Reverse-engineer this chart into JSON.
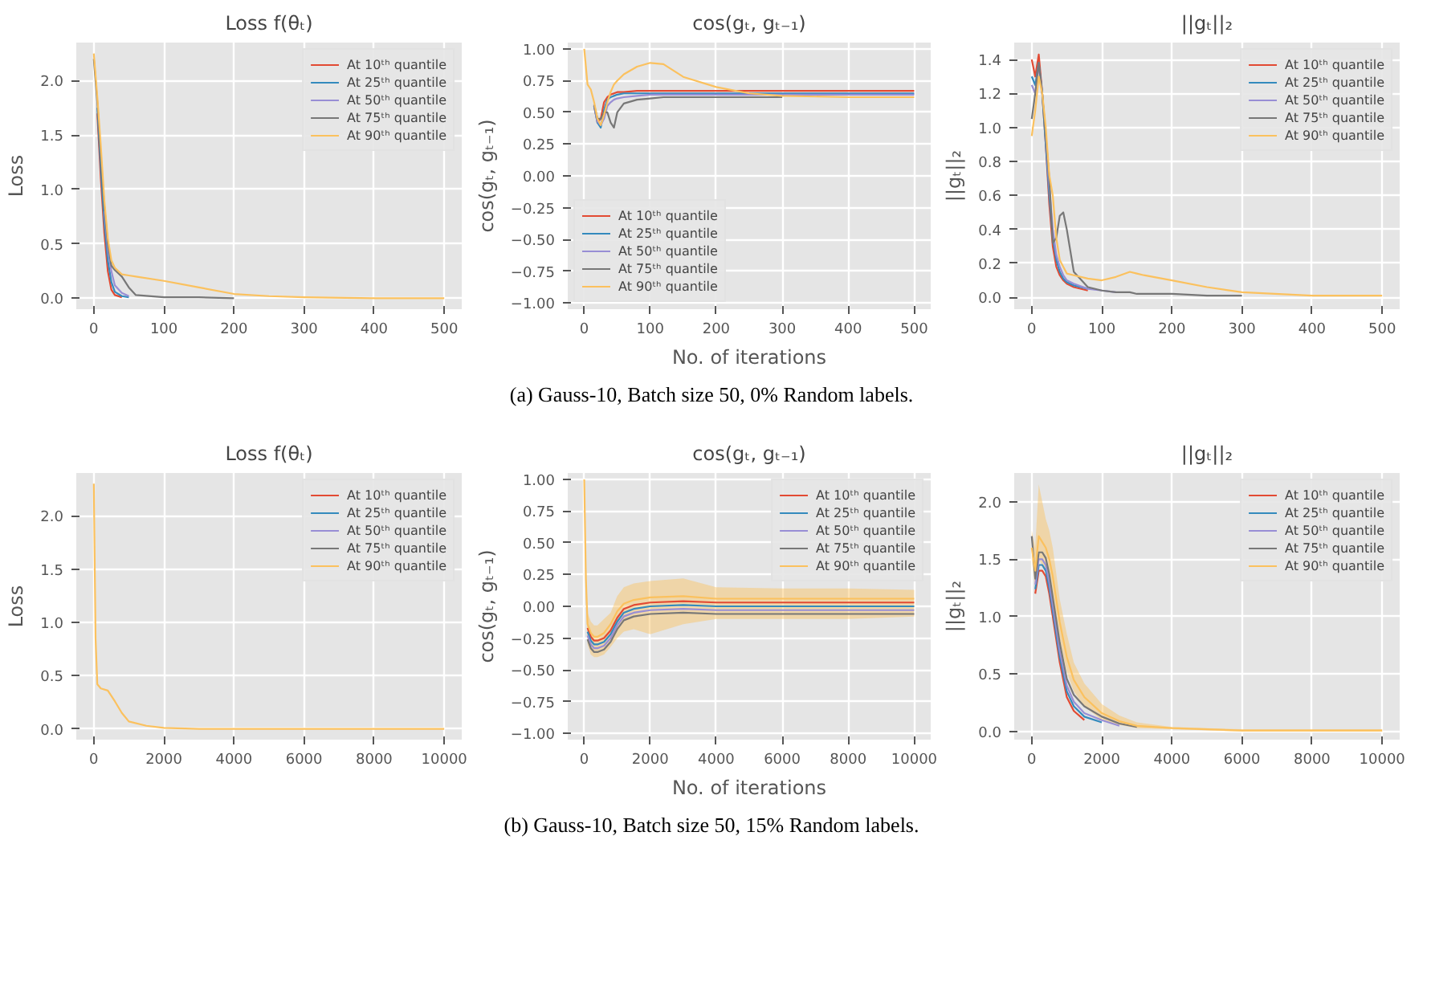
{
  "chart_data": [
    {
      "type": "line",
      "title": "Loss f(θₜ)",
      "ylabel": "Loss",
      "legend": "top right",
      "grid": true,
      "x": [
        0,
        5,
        10,
        15,
        20,
        25,
        30,
        40,
        50,
        60,
        100,
        150,
        200,
        250,
        300,
        400,
        500
      ],
      "xlim": [
        -25,
        525
      ],
      "xticks": [
        0,
        100,
        200,
        300,
        400,
        500
      ],
      "ylim": [
        -0.1,
        2.35
      ],
      "yticks": [
        {
          "value": 0,
          "label": "0.0"
        },
        {
          "value": 0.5,
          "label": "0.5"
        },
        {
          "value": 1,
          "label": "1.0"
        },
        {
          "value": 1.5,
          "label": "1.5"
        },
        {
          "value": 2,
          "label": "2.0"
        }
      ],
      "series": [
        {
          "name": "At 10ᵗʰ quantile",
          "color": "#e24a33",
          "values": [
            null,
            1.7,
            1.1,
            0.6,
            0.25,
            0.08,
            0.03,
            0.01,
            null,
            null,
            null,
            null,
            null,
            null,
            null,
            null,
            null
          ]
        },
        {
          "name": "At 25ᵗʰ quantile",
          "color": "#348abd",
          "values": [
            null,
            1.75,
            1.2,
            0.7,
            0.35,
            0.15,
            0.06,
            0.02,
            0.01,
            null,
            null,
            null,
            null,
            null,
            null,
            null,
            null
          ]
        },
        {
          "name": "At 50ᵗʰ quantile",
          "color": "#988ed5",
          "values": [
            null,
            null,
            null,
            0.8,
            0.45,
            0.25,
            0.12,
            0.05,
            0.02,
            null,
            null,
            null,
            null,
            null,
            null,
            null,
            null
          ]
        },
        {
          "name": "At 75ᵗʰ quantile",
          "color": "#777777",
          "values": [
            2.2,
            1.8,
            1.3,
            0.85,
            0.5,
            0.3,
            0.26,
            0.2,
            0.1,
            0.03,
            0.01,
            0.01,
            0.0,
            null,
            null,
            null,
            null
          ]
        },
        {
          "name": "At 90ᵗʰ quantile",
          "color": "#fbc15e",
          "values": [
            2.25,
            1.85,
            1.4,
            0.9,
            0.55,
            0.35,
            0.28,
            0.22,
            0.21,
            0.2,
            0.16,
            0.1,
            0.04,
            0.02,
            0.01,
            0.0,
            0.0
          ]
        }
      ]
    },
    {
      "type": "line",
      "title": "cos(gₜ, gₜ₋₁)",
      "ylabel": "cos(gₜ, gₜ₋₁)",
      "xlabel": "No. of iterations",
      "legend": "bottom left",
      "grid": true,
      "annotations": [
        "(a)  Gauss-10, Batch size 50, 0% Random labels."
      ],
      "x": [
        0,
        5,
        10,
        15,
        20,
        25,
        30,
        35,
        40,
        45,
        50,
        60,
        80,
        100,
        120,
        150,
        200,
        250,
        300,
        400,
        500
      ],
      "xlim": [
        -25,
        525
      ],
      "xticks": [
        0,
        100,
        200,
        300,
        400,
        500
      ],
      "ylim": [
        -1.05,
        1.05
      ],
      "yticks": [
        {
          "value": -1,
          "label": "−1.00"
        },
        {
          "value": -0.75,
          "label": "−0.75"
        },
        {
          "value": -0.5,
          "label": "−0.50"
        },
        {
          "value": -0.25,
          "label": "−0.25"
        },
        {
          "value": 0,
          "label": "0.00"
        },
        {
          "value": 0.25,
          "label": "0.25"
        },
        {
          "value": 0.5,
          "label": "0.50"
        },
        {
          "value": 0.75,
          "label": "0.75"
        },
        {
          "value": 1,
          "label": "1.00"
        }
      ],
      "series": [
        {
          "name": "At 10ᵗʰ quantile",
          "color": "#e24a33",
          "values": [
            null,
            null,
            null,
            0.55,
            0.42,
            0.45,
            0.58,
            0.62,
            0.64,
            0.65,
            0.66,
            0.66,
            0.67,
            0.67,
            0.67,
            0.67,
            0.67,
            0.67,
            0.67,
            0.67,
            0.67
          ]
        },
        {
          "name": "At 25ᵗʰ quantile",
          "color": "#348abd",
          "values": [
            null,
            null,
            null,
            0.55,
            0.42,
            0.38,
            0.52,
            0.6,
            0.62,
            0.63,
            0.64,
            0.65,
            0.65,
            0.65,
            0.65,
            0.65,
            0.65,
            0.65,
            0.65,
            0.65,
            0.65
          ]
        },
        {
          "name": "At 50ᵗʰ quantile",
          "color": "#988ed5",
          "values": [
            null,
            null,
            null,
            0.56,
            0.43,
            0.4,
            0.45,
            0.55,
            0.58,
            0.6,
            0.61,
            0.62,
            0.63,
            0.64,
            0.64,
            0.64,
            0.64,
            0.64,
            0.64,
            0.64,
            0.64
          ]
        },
        {
          "name": "At 75ᵗʰ quantile",
          "color": "#777777",
          "values": [
            null,
            null,
            null,
            0.56,
            0.45,
            0.45,
            0.5,
            0.5,
            0.42,
            0.38,
            0.5,
            0.57,
            0.6,
            0.61,
            0.62,
            0.62,
            0.62,
            0.62,
            0.62,
            null,
            null
          ]
        },
        {
          "name": "At 90ᵗʰ quantile",
          "color": "#fbc15e",
          "values": [
            1.0,
            0.72,
            0.68,
            0.58,
            0.45,
            0.4,
            0.48,
            0.58,
            0.66,
            0.72,
            0.75,
            0.8,
            0.86,
            0.89,
            0.88,
            0.78,
            0.7,
            0.65,
            0.63,
            0.62,
            0.62
          ]
        }
      ]
    },
    {
      "type": "line",
      "title": "||gₜ||₂",
      "ylabel": "||gₜ||₂",
      "legend": "top right",
      "grid": true,
      "x": [
        0,
        5,
        10,
        15,
        20,
        25,
        30,
        35,
        40,
        45,
        50,
        60,
        80,
        100,
        120,
        140,
        150,
        160,
        200,
        250,
        300,
        400,
        500
      ],
      "xlim": [
        -25,
        525
      ],
      "xticks": [
        0,
        100,
        200,
        300,
        400,
        500
      ],
      "ylim": [
        -0.07,
        1.5
      ],
      "yticks": [
        {
          "value": 0,
          "label": "0.0"
        },
        {
          "value": 0.2,
          "label": "0.2"
        },
        {
          "value": 0.4,
          "label": "0.4"
        },
        {
          "value": 0.6,
          "label": "0.6"
        },
        {
          "value": 0.8,
          "label": "0.8"
        },
        {
          "value": 1,
          "label": "1.0"
        },
        {
          "value": 1.2,
          "label": "1.2"
        },
        {
          "value": 1.4,
          "label": "1.4"
        }
      ],
      "series": [
        {
          "name": "At 10ᵗʰ quantile",
          "color": "#e24a33",
          "values": [
            1.4,
            1.3,
            1.43,
            1.2,
            0.9,
            0.55,
            0.3,
            0.18,
            0.13,
            0.1,
            0.08,
            0.06,
            0.04,
            null,
            null,
            null,
            null,
            null,
            null,
            null,
            null,
            null,
            null
          ]
        },
        {
          "name": "At 25ᵗʰ quantile",
          "color": "#348abd",
          "values": [
            1.3,
            1.25,
            1.38,
            1.2,
            0.9,
            0.6,
            0.35,
            0.22,
            0.15,
            0.11,
            0.09,
            0.07,
            0.05,
            null,
            null,
            null,
            null,
            null,
            null,
            null,
            null,
            null,
            null
          ]
        },
        {
          "name": "At 50ᵗʰ quantile",
          "color": "#988ed5",
          "values": [
            1.25,
            1.2,
            1.35,
            null,
            0.95,
            0.65,
            0.4,
            0.25,
            0.18,
            0.13,
            0.1,
            0.08,
            0.05,
            0.04,
            0.03,
            null,
            null,
            null,
            null,
            null,
            null,
            null,
            null
          ]
        },
        {
          "name": "At 75ᵗʰ quantile",
          "color": "#777777",
          "values": [
            1.05,
            1.2,
            1.38,
            1.2,
            0.95,
            0.7,
            0.32,
            0.35,
            0.48,
            0.5,
            0.4,
            0.15,
            0.06,
            0.04,
            0.03,
            0.03,
            0.02,
            0.02,
            0.02,
            0.01,
            0.01,
            null,
            null
          ]
        },
        {
          "name": "At 90ᵗʰ quantile",
          "color": "#fbc15e",
          "values": [
            0.95,
            1.1,
            1.3,
            1.2,
            1.0,
            0.72,
            0.6,
            0.35,
            0.22,
            0.18,
            0.14,
            0.13,
            0.11,
            0.1,
            0.12,
            0.15,
            0.14,
            0.13,
            0.1,
            0.06,
            0.03,
            0.01,
            0.01
          ]
        }
      ]
    },
    {
      "type": "line",
      "title": "Loss f(θₜ)",
      "ylabel": "Loss",
      "legend": "top right",
      "grid": true,
      "x": [
        0,
        50,
        100,
        200,
        400,
        600,
        800,
        1000,
        1500,
        2000,
        3000,
        5000,
        10000
      ],
      "xlim": [
        -500,
        10500
      ],
      "xticks": [
        0,
        2000,
        4000,
        6000,
        8000,
        10000
      ],
      "ylim": [
        -0.1,
        2.4
      ],
      "yticks": [
        {
          "value": 0,
          "label": "0.0"
        },
        {
          "value": 0.5,
          "label": "0.5"
        },
        {
          "value": 1,
          "label": "1.0"
        },
        {
          "value": 1.5,
          "label": "1.5"
        },
        {
          "value": 2,
          "label": "2.0"
        }
      ],
      "series": [
        {
          "name": "At 10ᵗʰ quantile",
          "color": "#e24a33",
          "values": [
            null,
            null,
            null,
            null,
            null,
            null,
            null,
            null,
            null,
            null,
            null,
            null,
            null
          ]
        },
        {
          "name": "At 25ᵗʰ quantile",
          "color": "#348abd",
          "values": [
            null,
            null,
            null,
            null,
            null,
            null,
            null,
            null,
            null,
            null,
            null,
            null,
            null
          ]
        },
        {
          "name": "At 50ᵗʰ quantile",
          "color": "#988ed5",
          "values": [
            null,
            null,
            null,
            null,
            null,
            null,
            null,
            null,
            null,
            null,
            null,
            null,
            null
          ]
        },
        {
          "name": "At 75ᵗʰ quantile",
          "color": "#777777",
          "values": [
            null,
            null,
            null,
            null,
            null,
            null,
            null,
            null,
            null,
            null,
            null,
            null,
            null
          ]
        },
        {
          "name": "At 90ᵗʰ quantile",
          "color": "#fbc15e",
          "values": [
            2.3,
            0.85,
            0.42,
            0.38,
            0.36,
            0.26,
            0.15,
            0.07,
            0.03,
            0.01,
            0.0,
            0.0,
            0.0
          ]
        }
      ]
    },
    {
      "type": "line",
      "title": "cos(gₜ, gₜ₋₁)",
      "ylabel": "cos(gₜ, gₜ₋₁)",
      "xlabel": "No. of iterations",
      "legend": "top right",
      "grid": true,
      "annotations": [
        "(b)  Gauss-10, Batch size 50, 15% Random labels."
      ],
      "x": [
        0,
        50,
        100,
        200,
        300,
        400,
        600,
        800,
        1000,
        1200,
        1500,
        2000,
        3000,
        4000,
        6000,
        8000,
        10000
      ],
      "xlim": [
        -500,
        10500
      ],
      "xticks": [
        0,
        2000,
        4000,
        6000,
        8000,
        10000
      ],
      "ylim": [
        -1.05,
        1.05
      ],
      "yticks": [
        {
          "value": -1,
          "label": "−1.00"
        },
        {
          "value": -0.75,
          "label": "−0.75"
        },
        {
          "value": -0.5,
          "label": "−0.50"
        },
        {
          "value": -0.25,
          "label": "−0.25"
        },
        {
          "value": 0,
          "label": "0.00"
        },
        {
          "value": 0.25,
          "label": "0.25"
        },
        {
          "value": 0.5,
          "label": "0.50"
        },
        {
          "value": 0.75,
          "label": "0.75"
        },
        {
          "value": 1,
          "label": "1.00"
        }
      ],
      "series": [
        {
          "name": "At 10ᵗʰ quantile",
          "color": "#e24a33",
          "values": [
            null,
            null,
            -0.17,
            -0.24,
            -0.27,
            -0.27,
            -0.25,
            -0.19,
            -0.09,
            -0.02,
            0.01,
            0.03,
            0.04,
            0.03,
            0.03,
            0.03,
            0.03
          ]
        },
        {
          "name": "At 25ᵗʰ quantile",
          "color": "#348abd",
          "values": [
            null,
            null,
            -0.2,
            -0.27,
            -0.3,
            -0.3,
            -0.28,
            -0.22,
            -0.12,
            -0.05,
            -0.02,
            0.0,
            0.01,
            0.0,
            0.0,
            0.0,
            0.0
          ]
        },
        {
          "name": "At 50ᵗʰ quantile",
          "color": "#988ed5",
          "values": [
            null,
            null,
            -0.23,
            -0.3,
            -0.33,
            -0.33,
            -0.31,
            -0.25,
            -0.15,
            -0.08,
            -0.05,
            -0.03,
            -0.02,
            -0.03,
            -0.03,
            -0.03,
            -0.03
          ]
        },
        {
          "name": "At 75ᵗʰ quantile",
          "color": "#777777",
          "values": [
            null,
            null,
            -0.26,
            -0.33,
            -0.36,
            -0.36,
            -0.34,
            -0.28,
            -0.18,
            -0.11,
            -0.08,
            -0.06,
            -0.05,
            -0.06,
            -0.06,
            -0.06,
            -0.06
          ]
        },
        {
          "name": "At 90ᵗʰ quantile",
          "color": "#fbc15e",
          "values": [
            1.0,
            0.22,
            -0.14,
            -0.21,
            -0.24,
            -0.24,
            -0.21,
            -0.14,
            -0.04,
            0.02,
            0.05,
            0.07,
            0.08,
            0.06,
            0.06,
            0.06,
            0.06
          ],
          "lower": [
            1.0,
            0.05,
            -0.3,
            -0.38,
            -0.4,
            -0.4,
            -0.38,
            -0.32,
            -0.25,
            -0.2,
            -0.18,
            -0.22,
            -0.14,
            -0.1,
            -0.1,
            -0.1,
            -0.08
          ],
          "upper": [
            1.0,
            0.4,
            -0.05,
            -0.12,
            -0.15,
            -0.15,
            -0.1,
            -0.05,
            0.08,
            0.15,
            0.18,
            0.2,
            0.22,
            0.15,
            0.14,
            0.14,
            0.13
          ]
        }
      ]
    },
    {
      "type": "line",
      "title": "||gₜ||₂",
      "ylabel": "||gₜ||₂",
      "legend": "top right",
      "grid": true,
      "x": [
        0,
        100,
        200,
        300,
        400,
        500,
        600,
        800,
        1000,
        1200,
        1500,
        2000,
        2500,
        3000,
        4000,
        6000,
        10000
      ],
      "xlim": [
        -500,
        10500
      ],
      "xticks": [
        0,
        2000,
        4000,
        6000,
        8000,
        10000
      ],
      "ylim": [
        -0.07,
        2.25
      ],
      "yticks": [
        {
          "value": 0,
          "label": "0.0"
        },
        {
          "value": 0.5,
          "label": "0.5"
        },
        {
          "value": 1,
          "label": "1.0"
        },
        {
          "value": 1.5,
          "label": "1.5"
        },
        {
          "value": 2,
          "label": "2.0"
        }
      ],
      "series": [
        {
          "name": "At 10ᵗʰ quantile",
          "color": "#e24a33",
          "values": [
            null,
            1.2,
            1.4,
            1.4,
            1.35,
            1.2,
            1.0,
            0.6,
            0.3,
            0.18,
            0.1,
            null,
            null,
            null,
            null,
            null,
            null
          ]
        },
        {
          "name": "At 25ᵗʰ quantile",
          "color": "#348abd",
          "values": [
            null,
            1.24,
            1.45,
            1.45,
            1.4,
            1.25,
            1.05,
            0.65,
            0.35,
            0.22,
            0.13,
            0.08,
            null,
            null,
            null,
            null,
            null
          ]
        },
        {
          "name": "At 50ᵗʰ quantile",
          "color": "#988ed5",
          "values": [
            null,
            1.28,
            1.5,
            1.5,
            1.45,
            1.3,
            1.1,
            0.7,
            0.4,
            0.26,
            0.16,
            0.1,
            0.05,
            null,
            null,
            null,
            null
          ]
        },
        {
          "name": "At 75ᵗʰ quantile",
          "color": "#777777",
          "values": [
            1.7,
            1.33,
            1.56,
            1.56,
            1.51,
            1.37,
            1.17,
            0.77,
            0.46,
            0.32,
            0.22,
            0.13,
            0.07,
            0.04,
            null,
            null,
            null
          ]
        },
        {
          "name": "At 90ᵗʰ quantile",
          "color": "#fbc15e",
          "values": [
            1.6,
            1.4,
            1.7,
            1.65,
            1.6,
            1.5,
            1.35,
            0.95,
            0.65,
            0.45,
            0.3,
            0.16,
            0.09,
            0.05,
            0.03,
            0.01,
            0.01
          ],
          "lower": [
            1.5,
            1.25,
            1.5,
            1.45,
            1.4,
            1.3,
            1.15,
            0.8,
            0.52,
            0.35,
            0.22,
            0.1,
            0.06,
            0.03,
            0.02,
            0.0,
            0.0
          ],
          "upper": [
            1.75,
            1.6,
            2.15,
            2.0,
            1.85,
            1.75,
            1.6,
            1.15,
            0.85,
            0.6,
            0.42,
            0.24,
            0.14,
            0.08,
            0.04,
            0.02,
            0.02
          ]
        }
      ]
    }
  ]
}
